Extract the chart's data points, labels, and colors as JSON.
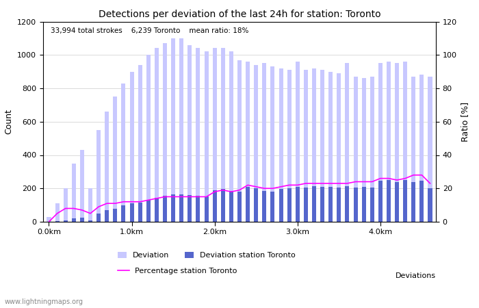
{
  "title": "Detections per deviation of the last 24h for station: Toronto",
  "subtitle": "33,994 total strokes    6,239 Toronto    mean ratio: 18%",
  "ylabel_left": "Count",
  "ylabel_right": "Ratio [%]",
  "xlabel_right": "Deviations",
  "watermark": "www.lightningmaps.org",
  "ylim_left": [
    0,
    1200
  ],
  "ylim_right": [
    0,
    120
  ],
  "yticks_left": [
    0,
    200,
    400,
    600,
    800,
    1000,
    1200
  ],
  "yticks_right": [
    0,
    20,
    40,
    60,
    80,
    100,
    120
  ],
  "xtick_labels": [
    "0.0km",
    "1.0km",
    "2.0km",
    "3.0km",
    "4.0km"
  ],
  "xtick_positions": [
    0,
    10,
    20,
    30,
    40
  ],
  "bar_color_light": "#c8c8ff",
  "bar_color_dark": "#5566cc",
  "line_color": "#ff00ff",
  "line_width": 1.2,
  "total_bars": [
    30,
    110,
    200,
    350,
    430,
    200,
    550,
    660,
    750,
    830,
    900,
    940,
    1000,
    1040,
    1070,
    1100,
    1100,
    1060,
    1040,
    1020,
    1040,
    1040,
    1020,
    970,
    960,
    940,
    950,
    930,
    920,
    910,
    960,
    910,
    920,
    910,
    900,
    890,
    950,
    870,
    860,
    870,
    950,
    960,
    950,
    960,
    870,
    880,
    870
  ],
  "station_bars": [
    2,
    5,
    10,
    20,
    25,
    10,
    50,
    70,
    80,
    100,
    110,
    115,
    130,
    145,
    155,
    165,
    165,
    160,
    155,
    150,
    190,
    195,
    185,
    180,
    210,
    200,
    185,
    180,
    195,
    200,
    210,
    205,
    215,
    210,
    210,
    205,
    215,
    205,
    210,
    205,
    245,
    250,
    240,
    250,
    240,
    245,
    200
  ],
  "ratio_line": [
    0,
    5,
    8,
    8,
    7,
    5,
    9,
    11,
    11,
    12,
    12,
    12,
    13,
    14,
    15,
    15,
    15,
    15,
    15,
    15,
    18,
    19,
    18,
    19,
    22,
    21,
    20,
    20,
    21,
    22,
    22,
    23,
    23,
    23,
    23,
    23,
    23,
    24,
    24,
    24,
    26,
    26,
    25,
    26,
    28,
    28,
    23
  ],
  "legend_label_deviation": "Deviation",
  "legend_label_station": "Deviation station Toronto",
  "legend_label_percentage": "Percentage station Toronto"
}
